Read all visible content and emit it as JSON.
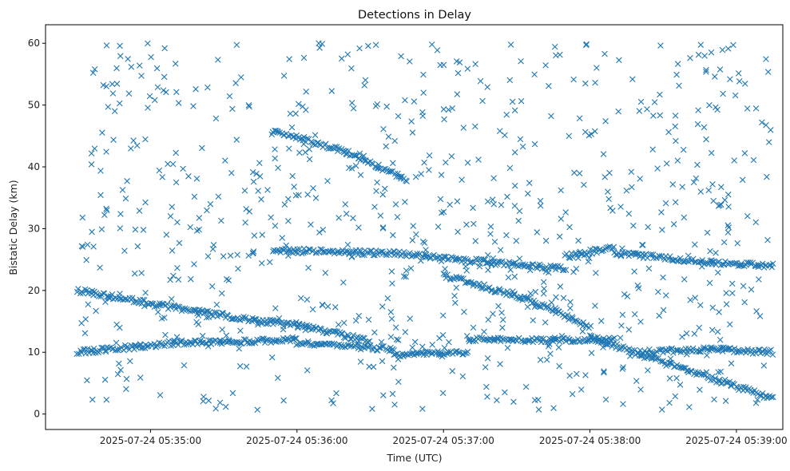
{
  "chart_data": {
    "type": "scatter",
    "title": "Detections in Delay",
    "xlabel": "Time (UTC)",
    "ylabel": "Bistatic Delay (km)",
    "marker": "x",
    "marker_color": "#1f77b4",
    "grid": false,
    "xlim": [
      "2025-07-24 05:34:17",
      "2025-07-24 05:39:19"
    ],
    "ylim": [
      -2.5,
      63
    ],
    "x_ticks": [
      "2025-07-24 05:35:00",
      "2025-07-24 05:36:00",
      "2025-07-24 05:37:00",
      "2025-07-24 05:38:00",
      "2025-07-24 05:39:00"
    ],
    "y_ticks": [
      0,
      10,
      20,
      30,
      40,
      50,
      60
    ],
    "data_time_range": [
      "2025-07-24 05:34:30",
      "2025-07-24 05:39:15"
    ],
    "tracks": [
      {
        "x": [
          "2025-07-24 05:34:30",
          "2025-07-24 05:35:20",
          "2025-07-24 05:36:05"
        ],
        "y": [
          20.0,
          16.5,
          14.0
        ]
      },
      {
        "x": [
          "2025-07-24 05:36:05",
          "2025-07-24 05:36:30"
        ],
        "y": [
          14.0,
          11.8
        ]
      },
      {
        "x": [
          "2025-07-24 05:37:00",
          "2025-07-24 05:37:35",
          "2025-07-24 05:38:00"
        ],
        "y": [
          22.5,
          18.5,
          14.0
        ]
      },
      {
        "x": [
          "2025-07-24 05:38:00",
          "2025-07-24 05:38:40",
          "2025-07-24 05:39:15"
        ],
        "y": [
          12.5,
          7.0,
          2.5
        ]
      },
      {
        "x": [
          "2025-07-24 05:35:50",
          "2025-07-24 05:36:20",
          "2025-07-24 05:36:45"
        ],
        "y": [
          46.0,
          42.5,
          38.0
        ]
      },
      {
        "x": [
          "2025-07-24 05:34:30",
          "2025-07-24 05:35:10",
          "2025-07-24 05:36:00"
        ],
        "y": [
          10.0,
          11.5,
          12.0
        ]
      },
      {
        "x": [
          "2025-07-24 05:36:00",
          "2025-07-24 05:36:40"
        ],
        "y": [
          11.5,
          10.5
        ]
      },
      {
        "x": [
          "2025-07-24 05:36:40",
          "2025-07-24 05:37:10"
        ],
        "y": [
          9.5,
          10.0
        ]
      },
      {
        "x": [
          "2025-07-24 05:37:10",
          "2025-07-24 05:37:40",
          "2025-07-24 05:38:10"
        ],
        "y": [
          12.0,
          12.0,
          12.0
        ]
      },
      {
        "x": [
          "2025-07-24 05:38:20",
          "2025-07-24 05:38:50",
          "2025-07-24 05:39:15"
        ],
        "y": [
          10.0,
          10.5,
          10.0
        ]
      },
      {
        "x": [
          "2025-07-24 05:35:50",
          "2025-07-24 05:36:40",
          "2025-07-24 05:37:20"
        ],
        "y": [
          26.5,
          26.0,
          24.5
        ]
      },
      {
        "x": [
          "2025-07-24 05:37:20",
          "2025-07-24 05:37:50"
        ],
        "y": [
          24.5,
          23.5
        ]
      },
      {
        "x": [
          "2025-07-24 05:37:50",
          "2025-07-24 05:38:10"
        ],
        "y": [
          25.5,
          27.0
        ]
      },
      {
        "x": [
          "2025-07-24 05:38:10",
          "2025-07-24 05:38:50",
          "2025-07-24 05:39:15"
        ],
        "y": [
          26.0,
          24.5,
          24.0
        ]
      }
    ],
    "clutter_points": 800
  }
}
